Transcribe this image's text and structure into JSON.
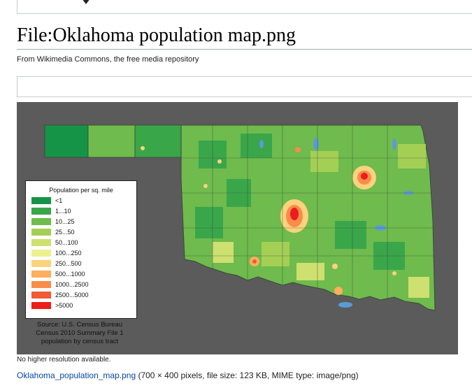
{
  "page": {
    "title": "File:Oklahoma population map.png",
    "tagline": "From Wikimedia Commons, the free media repository"
  },
  "map": {
    "legend": {
      "title": "Population per sq. mile",
      "items": [
        {
          "label": "<1",
          "color": "#159447"
        },
        {
          "label": "1...10",
          "color": "#3aa64a"
        },
        {
          "label": "10...25",
          "color": "#6fbb4d"
        },
        {
          "label": "25...50",
          "color": "#a4cf55"
        },
        {
          "label": "50...100",
          "color": "#cde070"
        },
        {
          "label": "100...250",
          "color": "#eef08f"
        },
        {
          "label": "250...500",
          "color": "#fcd27d"
        },
        {
          "label": "500...1000",
          "color": "#fcaf5c"
        },
        {
          "label": "1000...2500",
          "color": "#f88d4a"
        },
        {
          "label": "2500...5000",
          "color": "#f15a36"
        },
        {
          "label": ">5000",
          "color": "#ee1c1c"
        }
      ]
    },
    "source": {
      "line1": "Source: U.S. Census Bureau",
      "line2": "Census 2010 Summary File 1",
      "line3": "population by census tract"
    },
    "colors": {
      "background": "#5b5b5b",
      "water": "#5b9bd5",
      "border": "#3a4a3a"
    }
  },
  "footer": {
    "no_higher_resolution": "No higher resolution available.",
    "file_link": "Oklahoma_population_map.png",
    "file_details": " (700 × 400 pixels, file size: 123 KB, MIME type: image/png)"
  }
}
